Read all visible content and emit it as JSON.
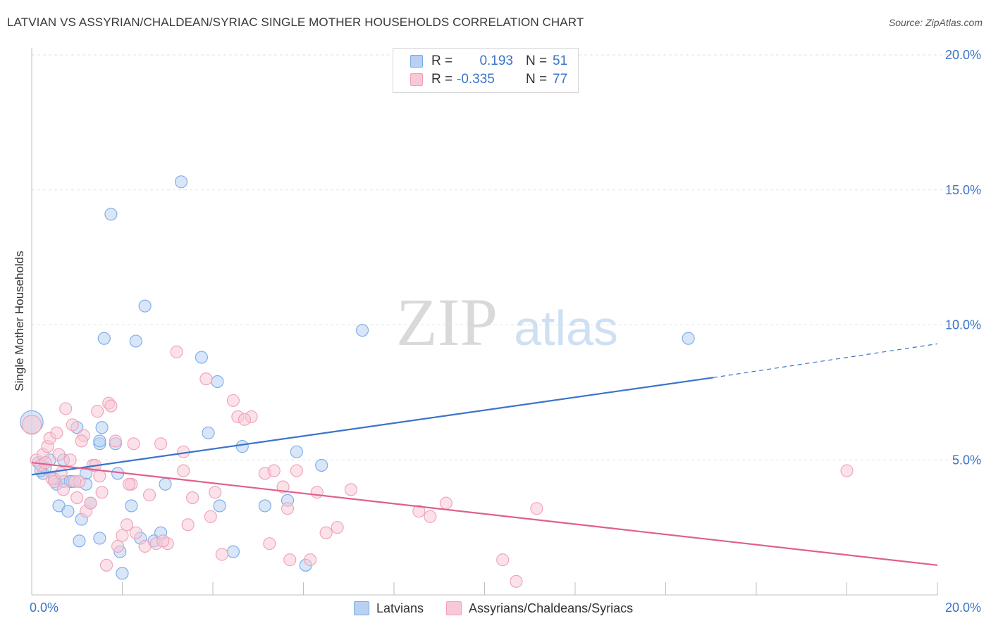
{
  "title": "LATVIAN VS ASSYRIAN/CHALDEAN/SYRIAC SINGLE MOTHER HOUSEHOLDS CORRELATION CHART",
  "source": "Source: ZipAtlas.com",
  "watermark": {
    "zip": "ZIP",
    "atlas": "atlas"
  },
  "legend_top": {
    "rows": [
      {
        "r_label": "R =",
        "r_value": "0.193",
        "n_label": "N =",
        "n_value": "51",
        "color": "#7aaae8",
        "fill": "#b8d1f3"
      },
      {
        "r_label": "R =",
        "r_value": "-0.335",
        "n_label": "N =",
        "n_value": "77",
        "color": "#f0a0b8",
        "fill": "#f8c8d6"
      }
    ]
  },
  "legend_bottom": [
    {
      "label": "Latvians",
      "color": "#7aaae8",
      "fill": "#b8d1f3"
    },
    {
      "label": "Assyrians/Chaldeans/Syriacs",
      "color": "#f0a0b8",
      "fill": "#f8c8d6"
    }
  ],
  "chart_data": {
    "type": "scatter",
    "title": "LATVIAN VS ASSYRIAN/CHALDEAN/SYRIAC SINGLE MOTHER HOUSEHOLDS CORRELATION CHART",
    "xlabel": "",
    "ylabel": "Single Mother Households",
    "xlim": [
      0,
      20
    ],
    "ylim": [
      0,
      20
    ],
    "x_tick_labels": [
      "0.0%",
      "20.0%"
    ],
    "y_tick_labels": [
      {
        "value": 5,
        "label": "5.0%"
      },
      {
        "value": 10,
        "label": "10.0%"
      },
      {
        "value": 15,
        "label": "15.0%"
      },
      {
        "value": 20,
        "label": "20.0%"
      }
    ],
    "grid": true,
    "series": [
      {
        "name": "Latvians",
        "color": "#3b74c9",
        "marker_fill": "#b8d1f3",
        "points": [
          [
            0.0,
            6.4,
            1.9
          ],
          [
            0.15,
            4.9,
            1
          ],
          [
            0.25,
            4.5,
            1
          ],
          [
            0.4,
            5.0,
            1
          ],
          [
            0.55,
            4.1,
            1
          ],
          [
            0.6,
            3.3,
            1
          ],
          [
            0.7,
            4.2,
            1
          ],
          [
            0.8,
            3.1,
            1
          ],
          [
            0.9,
            4.2,
            1
          ],
          [
            1.0,
            6.2,
            1
          ],
          [
            1.05,
            2.0,
            1
          ],
          [
            1.1,
            2.8,
            1
          ],
          [
            1.2,
            4.5,
            1
          ],
          [
            1.5,
            5.6,
            1
          ],
          [
            1.5,
            5.7,
            1
          ],
          [
            1.5,
            2.1,
            1
          ],
          [
            1.55,
            6.2,
            1
          ],
          [
            1.6,
            9.5,
            1
          ],
          [
            1.75,
            14.1,
            1
          ],
          [
            1.85,
            5.6,
            1
          ],
          [
            1.9,
            4.5,
            1
          ],
          [
            1.95,
            1.6,
            1
          ],
          [
            2.0,
            0.8,
            1
          ],
          [
            2.2,
            3.3,
            1
          ],
          [
            2.3,
            9.4,
            1
          ],
          [
            2.4,
            2.1,
            1
          ],
          [
            2.5,
            10.7,
            1
          ],
          [
            2.7,
            2.0,
            1
          ],
          [
            2.85,
            2.3,
            1
          ],
          [
            2.95,
            4.1,
            1
          ],
          [
            3.3,
            15.3,
            1
          ],
          [
            3.75,
            8.8,
            1
          ],
          [
            3.9,
            6.0,
            1
          ],
          [
            4.1,
            7.9,
            1
          ],
          [
            4.15,
            3.3,
            1
          ],
          [
            4.45,
            1.6,
            1
          ],
          [
            4.65,
            5.5,
            1
          ],
          [
            5.15,
            3.3,
            1
          ],
          [
            5.65,
            3.5,
            1
          ],
          [
            5.85,
            5.3,
            1
          ],
          [
            6.05,
            1.1,
            1
          ],
          [
            6.4,
            4.8,
            1
          ],
          [
            7.3,
            9.8,
            1
          ],
          [
            14.5,
            9.5,
            1
          ],
          [
            0.3,
            4.7,
            1
          ],
          [
            0.5,
            4.3,
            1
          ],
          [
            0.7,
            5.0,
            1
          ],
          [
            1.2,
            4.1,
            1
          ],
          [
            1.3,
            3.4,
            1
          ],
          [
            0.2,
            4.6,
            1
          ],
          [
            0.85,
            4.2,
            1
          ]
        ],
        "trend": {
          "x": [
            0,
            15.05
          ],
          "y": [
            4.45,
            8.05
          ],
          "dashed_to": [
            20,
            9.3
          ]
        }
      },
      {
        "name": "Assyrians/Chaldeans/Syriacs",
        "color": "#e0608a",
        "marker_fill": "#f8c8d6",
        "points": [
          [
            0.0,
            6.3,
            1.6
          ],
          [
            0.1,
            5.0,
            1
          ],
          [
            0.2,
            4.8,
            1
          ],
          [
            0.25,
            5.2,
            1
          ],
          [
            0.35,
            5.5,
            1
          ],
          [
            0.4,
            5.8,
            1
          ],
          [
            0.45,
            4.3,
            1
          ],
          [
            0.5,
            4.2,
            1
          ],
          [
            0.55,
            6.0,
            1
          ],
          [
            0.6,
            5.2,
            1
          ],
          [
            0.7,
            3.9,
            1
          ],
          [
            0.75,
            6.9,
            1
          ],
          [
            0.85,
            5.0,
            1
          ],
          [
            0.9,
            6.3,
            1
          ],
          [
            1.0,
            3.6,
            1
          ],
          [
            1.05,
            4.2,
            1
          ],
          [
            1.15,
            5.9,
            1
          ],
          [
            1.2,
            3.1,
            1
          ],
          [
            1.3,
            3.4,
            1
          ],
          [
            1.35,
            4.8,
            1
          ],
          [
            1.45,
            6.8,
            1
          ],
          [
            1.5,
            4.4,
            1
          ],
          [
            1.55,
            3.8,
            1
          ],
          [
            1.65,
            1.1,
            1
          ],
          [
            1.7,
            7.1,
            1
          ],
          [
            1.85,
            5.7,
            1
          ],
          [
            1.9,
            1.8,
            1
          ],
          [
            2.0,
            2.2,
            1
          ],
          [
            2.1,
            2.6,
            1
          ],
          [
            2.2,
            4.1,
            1
          ],
          [
            2.25,
            5.6,
            1
          ],
          [
            2.3,
            2.3,
            1
          ],
          [
            2.5,
            1.8,
            1
          ],
          [
            2.6,
            3.7,
            1
          ],
          [
            2.75,
            1.9,
            1
          ],
          [
            2.85,
            5.6,
            1
          ],
          [
            3.0,
            1.9,
            1
          ],
          [
            3.2,
            9.0,
            1
          ],
          [
            3.35,
            4.6,
            1
          ],
          [
            3.45,
            2.6,
            1
          ],
          [
            3.55,
            3.6,
            1
          ],
          [
            3.85,
            8.0,
            1
          ],
          [
            3.95,
            2.9,
            1
          ],
          [
            4.05,
            3.8,
            1
          ],
          [
            4.2,
            1.5,
            1
          ],
          [
            4.45,
            7.2,
            1
          ],
          [
            4.55,
            6.6,
            1
          ],
          [
            4.85,
            6.6,
            1
          ],
          [
            5.15,
            4.5,
            1
          ],
          [
            5.25,
            1.9,
            1
          ],
          [
            5.35,
            4.6,
            1
          ],
          [
            5.55,
            4.0,
            1
          ],
          [
            5.65,
            3.2,
            1
          ],
          [
            5.7,
            1.3,
            1
          ],
          [
            5.85,
            4.6,
            1
          ],
          [
            6.15,
            1.3,
            1
          ],
          [
            6.3,
            3.8,
            1
          ],
          [
            6.5,
            2.3,
            1
          ],
          [
            6.75,
            2.5,
            1
          ],
          [
            7.05,
            3.9,
            1
          ],
          [
            8.55,
            3.1,
            1
          ],
          [
            8.8,
            2.9,
            1
          ],
          [
            9.15,
            3.4,
            1
          ],
          [
            10.4,
            1.3,
            1
          ],
          [
            10.7,
            0.5,
            1
          ],
          [
            11.15,
            3.2,
            1
          ],
          [
            18.0,
            4.6,
            1
          ],
          [
            0.3,
            4.9,
            1
          ],
          [
            0.65,
            4.5,
            1
          ],
          [
            1.1,
            5.7,
            1
          ],
          [
            1.75,
            7.0,
            1
          ],
          [
            2.15,
            4.1,
            1
          ],
          [
            3.35,
            5.3,
            1
          ],
          [
            1.4,
            4.8,
            1
          ],
          [
            0.95,
            4.2,
            1
          ],
          [
            2.9,
            2.0,
            1
          ],
          [
            4.7,
            6.5,
            1
          ]
        ],
        "trend": {
          "x": [
            0,
            20
          ],
          "y": [
            4.9,
            1.1
          ]
        }
      }
    ]
  }
}
